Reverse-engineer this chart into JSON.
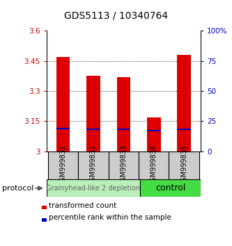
{
  "title": "GDS5113 / 10340764",
  "samples": [
    "GSM999831",
    "GSM999832",
    "GSM999833",
    "GSM999834",
    "GSM999835"
  ],
  "red_bar_tops": [
    3.47,
    3.375,
    3.37,
    3.17,
    3.48
  ],
  "blue_marks": [
    3.113,
    3.108,
    3.108,
    3.102,
    3.111
  ],
  "bar_bottom": 3.0,
  "ylim": [
    3.0,
    3.6
  ],
  "yticks": [
    3.0,
    3.15,
    3.3,
    3.45,
    3.6
  ],
  "ytick_labels": [
    "3",
    "3.15",
    "3.3",
    "3.45",
    "3.6"
  ],
  "y2ticks": [
    0,
    25,
    50,
    75,
    100
  ],
  "y2tick_labels": [
    "0",
    "25",
    "50",
    "75",
    "100%"
  ],
  "groups": [
    {
      "label": "Grainyhead-like 2 depletion",
      "indices": [
        0,
        1,
        2
      ],
      "color": "#b8f0b8",
      "text_color": "#666666",
      "fontsize": 7
    },
    {
      "label": "control",
      "indices": [
        3,
        4
      ],
      "color": "#44dd44",
      "text_color": "#000000",
      "fontsize": 9
    }
  ],
  "protocol_label": "protocol",
  "bar_width": 0.45,
  "red_color": "#dd0000",
  "blue_color": "#0000cc",
  "bg_color": "#ffffff",
  "tick_color_left": "#cc0000",
  "tick_color_right": "#0000bb",
  "sample_box_color": "#cccccc",
  "legend_red_label": "transformed count",
  "legend_blue_label": "percentile rank within the sample",
  "title_fontsize": 10,
  "axis_fontsize": 7.5,
  "legend_fontsize": 7.5,
  "sample_fontsize": 7
}
